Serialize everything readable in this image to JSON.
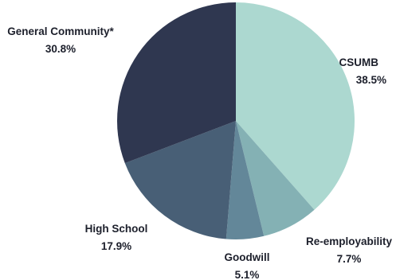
{
  "chart_data": {
    "type": "pie",
    "categories": [
      "CSUMB",
      "Re-employability",
      "Goodwill",
      "High School",
      "General Community*"
    ],
    "values": [
      38.5,
      7.7,
      5.1,
      17.9,
      30.8
    ],
    "value_labels": [
      "38.5%",
      "7.7%",
      "5.1%",
      "17.9%",
      "30.8%"
    ],
    "colors": [
      "#acd8d0",
      "#84b1b4",
      "#638799",
      "#485f76",
      "#2f3750"
    ],
    "start_angle": "top (12 o'clock), clockwise",
    "legend": "none (labels placed beside slices)"
  }
}
